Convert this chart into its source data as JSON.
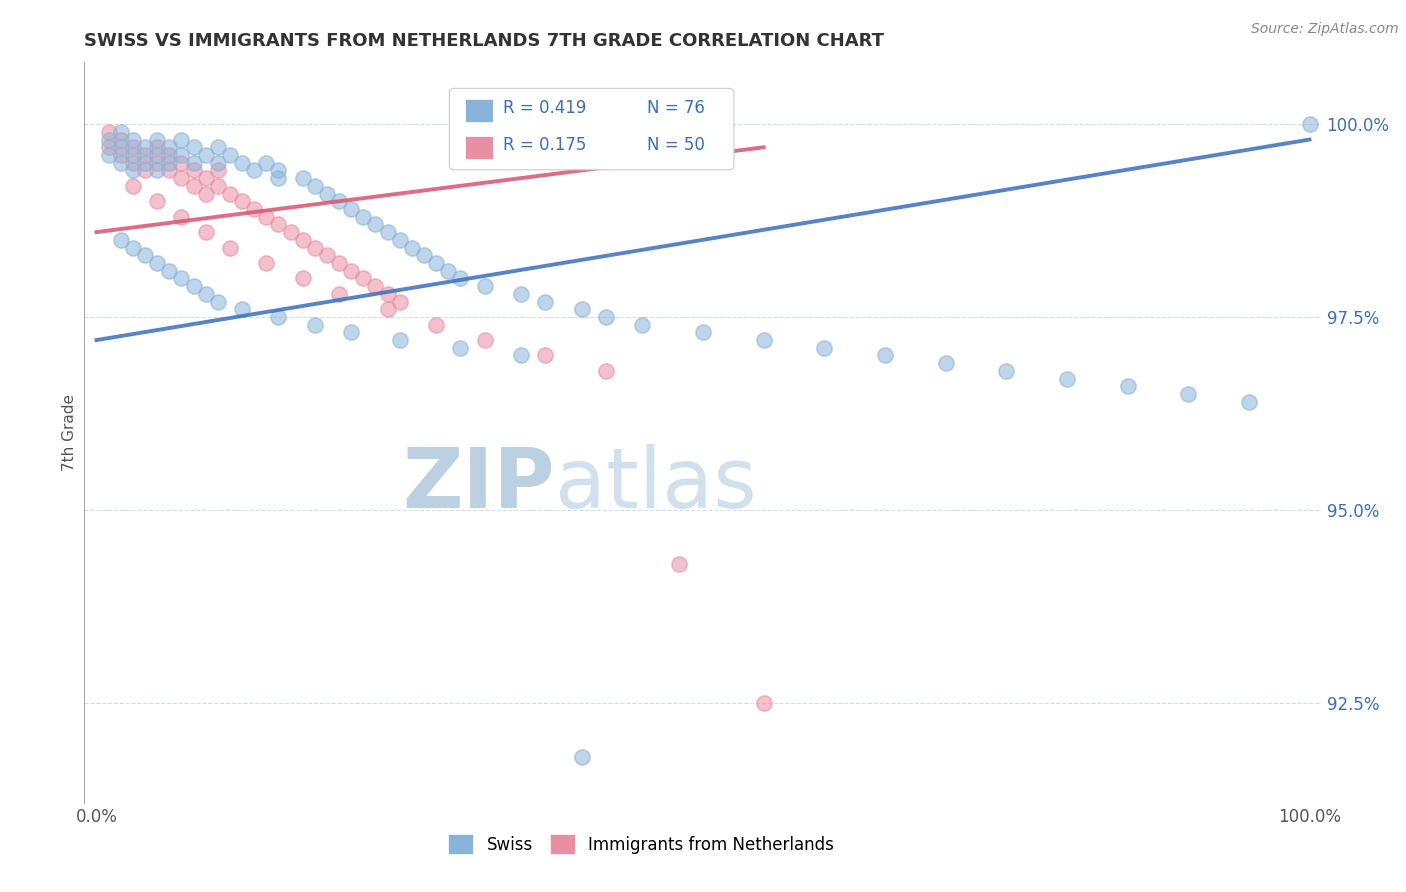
{
  "title": "SWISS VS IMMIGRANTS FROM NETHERLANDS 7TH GRADE CORRELATION CHART",
  "source_text": "Source: ZipAtlas.com",
  "ylabel": "7th Grade",
  "xlim": [
    -1.0,
    101.0
  ],
  "ylim": [
    91.2,
    100.8
  ],
  "xticks": [
    0.0,
    100.0
  ],
  "xticklabels": [
    "0.0%",
    "100.0%"
  ],
  "yticks": [
    92.5,
    95.0,
    97.5,
    100.0
  ],
  "yticklabels": [
    "92.5%",
    "95.0%",
    "97.5%",
    "100.0%"
  ],
  "swiss_color": "#89b4d9",
  "nl_color": "#e88fa4",
  "swiss_trendline_color": "#3a6fc0",
  "nl_trendline_color": "#d9546e",
  "r_text_color": "#3a6fc0",
  "ytick_color": "#3a6fc0",
  "watermark_zip_color": "#b8cde0",
  "watermark_atlas_color": "#c8dce8",
  "background_color": "#ffffff",
  "grid_color": "#c8d4e0",
  "swiss_x": [
    1,
    1,
    2,
    2,
    2,
    3,
    3,
    3,
    4,
    4,
    5,
    5,
    5,
    6,
    6,
    7,
    7,
    8,
    8,
    9,
    10,
    10,
    11,
    12,
    13,
    14,
    15,
    15,
    17,
    18,
    19,
    20,
    21,
    22,
    23,
    24,
    25,
    26,
    27,
    28,
    29,
    30,
    32,
    35,
    37,
    40,
    42,
    45,
    50,
    55,
    60,
    65,
    70,
    75,
    80,
    85,
    90,
    95,
    100,
    2,
    3,
    4,
    5,
    6,
    7,
    8,
    9,
    10,
    12,
    15,
    18,
    21,
    25,
    30,
    35,
    40
  ],
  "swiss_y": [
    99.8,
    99.6,
    99.9,
    99.7,
    99.5,
    99.8,
    99.6,
    99.4,
    99.7,
    99.5,
    99.8,
    99.6,
    99.4,
    99.7,
    99.5,
    99.8,
    99.6,
    99.7,
    99.5,
    99.6,
    99.7,
    99.5,
    99.6,
    99.5,
    99.4,
    99.5,
    99.4,
    99.3,
    99.3,
    99.2,
    99.1,
    99.0,
    98.9,
    98.8,
    98.7,
    98.6,
    98.5,
    98.4,
    98.3,
    98.2,
    98.1,
    98.0,
    97.9,
    97.8,
    97.7,
    97.6,
    97.5,
    97.4,
    97.3,
    97.2,
    97.1,
    97.0,
    96.9,
    96.8,
    96.7,
    96.6,
    96.5,
    96.4,
    100.0,
    98.5,
    98.4,
    98.3,
    98.2,
    98.1,
    98.0,
    97.9,
    97.8,
    97.7,
    97.6,
    97.5,
    97.4,
    97.3,
    97.2,
    97.1,
    97.0,
    91.8
  ],
  "nl_x": [
    1,
    1,
    2,
    2,
    3,
    3,
    4,
    4,
    5,
    5,
    6,
    6,
    7,
    7,
    8,
    8,
    9,
    9,
    10,
    10,
    11,
    12,
    13,
    14,
    15,
    16,
    17,
    18,
    19,
    20,
    21,
    22,
    23,
    24,
    25,
    3,
    5,
    7,
    9,
    11,
    14,
    17,
    20,
    24,
    28,
    32,
    37,
    42,
    48,
    55
  ],
  "nl_y": [
    99.9,
    99.7,
    99.8,
    99.6,
    99.7,
    99.5,
    99.6,
    99.4,
    99.7,
    99.5,
    99.6,
    99.4,
    99.5,
    99.3,
    99.4,
    99.2,
    99.3,
    99.1,
    99.4,
    99.2,
    99.1,
    99.0,
    98.9,
    98.8,
    98.7,
    98.6,
    98.5,
    98.4,
    98.3,
    98.2,
    98.1,
    98.0,
    97.9,
    97.8,
    97.7,
    99.2,
    99.0,
    98.8,
    98.6,
    98.4,
    98.2,
    98.0,
    97.8,
    97.6,
    97.4,
    97.2,
    97.0,
    96.8,
    94.3,
    92.5
  ],
  "swiss_trend_x0": 0,
  "swiss_trend_x1": 100,
  "swiss_trend_y0": 97.2,
  "swiss_trend_y1": 99.8,
  "nl_trend_x0": 0,
  "nl_trend_x1": 55,
  "nl_trend_y0": 98.6,
  "nl_trend_y1": 99.7,
  "marker_size": 120,
  "marker_alpha": 0.55
}
